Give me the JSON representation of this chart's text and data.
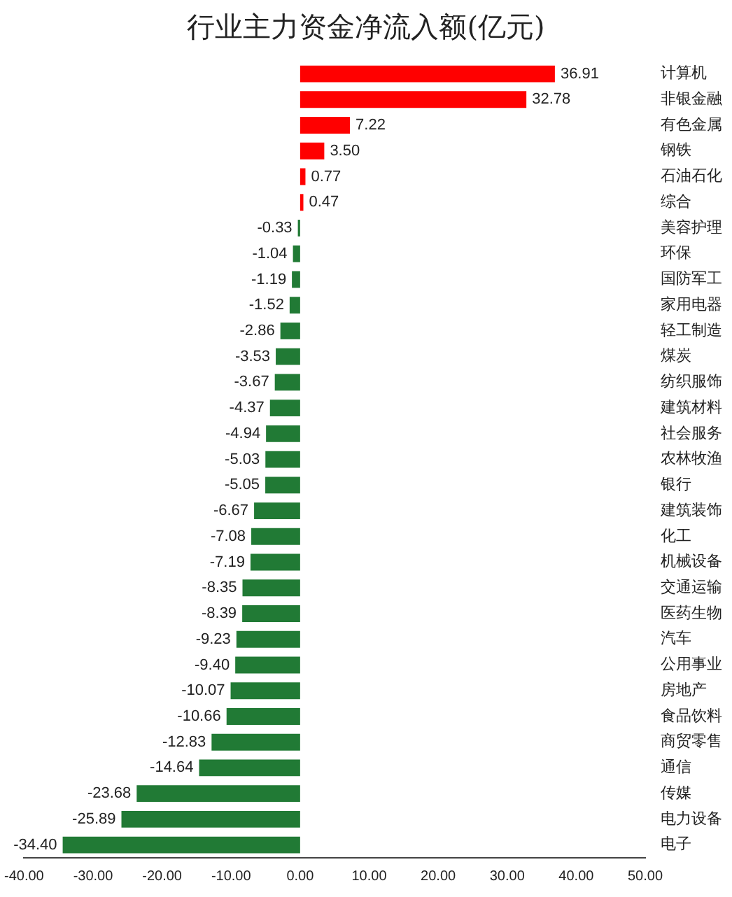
{
  "chart_data": {
    "type": "bar",
    "orientation": "horizontal",
    "title": "行业主力资金净流入额(亿元)",
    "categories": [
      "计算机",
      "非银金融",
      "有色金属",
      "钢铁",
      "石油石化",
      "综合",
      "美容护理",
      "环保",
      "国防军工",
      "家用电器",
      "轻工制造",
      "煤炭",
      "纺织服饰",
      "建筑材料",
      "社会服务",
      "农林牧渔",
      "银行",
      "建筑装饰",
      "化工",
      "机械设备",
      "交通运输",
      "医药生物",
      "汽车",
      "公用事业",
      "房地产",
      "食品饮料",
      "商贸零售",
      "通信",
      "传媒",
      "电力设备",
      "电子"
    ],
    "values": [
      36.91,
      32.78,
      7.22,
      3.5,
      0.77,
      0.47,
      -0.33,
      -1.04,
      -1.19,
      -1.52,
      -2.86,
      -3.53,
      -3.67,
      -4.37,
      -4.94,
      -5.03,
      -5.05,
      -6.67,
      -7.08,
      -7.19,
      -8.35,
      -8.39,
      -9.23,
      -9.4,
      -10.07,
      -10.66,
      -12.83,
      -14.64,
      -23.68,
      -25.89,
      -34.4
    ],
    "value_labels": [
      "36.91",
      "32.78",
      "7.22",
      "3.50",
      "0.77",
      "0.47",
      "-0.33",
      "-1.04",
      "-1.19",
      "-1.52",
      "-2.86",
      "-3.53",
      "-3.67",
      "-4.37",
      "-4.94",
      "-5.03",
      "-5.05",
      "-6.67",
      "-7.08",
      "-7.19",
      "-8.35",
      "-8.39",
      "-9.23",
      "-9.40",
      "-10.07",
      "-10.66",
      "-12.83",
      "-14.64",
      "-23.68",
      "-25.89",
      "-34.40"
    ],
    "colors": [
      "#ff0000",
      "#ff0000",
      "#ff0000",
      "#ff0000",
      "#ff0000",
      "#ff0000",
      "#217a35",
      "#217a35",
      "#217a35",
      "#217a35",
      "#217a35",
      "#217a35",
      "#217a35",
      "#217a35",
      "#217a35",
      "#217a35",
      "#217a35",
      "#217a35",
      "#217a35",
      "#217a35",
      "#217a35",
      "#217a35",
      "#217a35",
      "#217a35",
      "#217a35",
      "#217a35",
      "#217a35",
      "#217a35",
      "#217a35",
      "#217a35",
      "#217a35"
    ],
    "xlim": [
      -40,
      50
    ],
    "xticks": [
      {
        "value": -40,
        "label": "-40.00"
      },
      {
        "value": -30,
        "label": "-30.00"
      },
      {
        "value": -20,
        "label": "-20.00"
      },
      {
        "value": -10,
        "label": "-10.00"
      },
      {
        "value": 0,
        "label": "0.00"
      },
      {
        "value": 10,
        "label": "10.00"
      },
      {
        "value": 20,
        "label": "20.00"
      },
      {
        "value": 30,
        "label": "30.00"
      },
      {
        "value": 40,
        "label": "40.00"
      },
      {
        "value": 50,
        "label": "50.00"
      }
    ],
    "grid": false,
    "legend": false
  }
}
